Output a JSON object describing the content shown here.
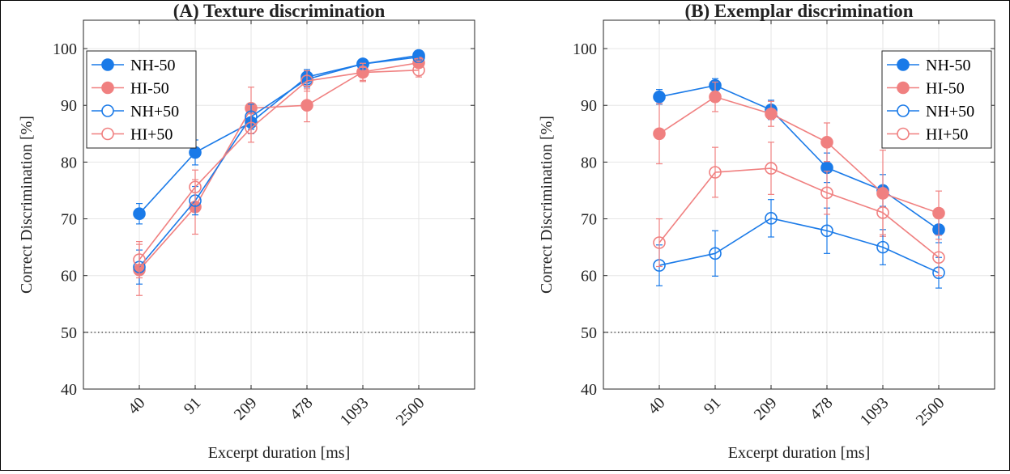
{
  "chart_data": [
    {
      "type": "line",
      "title": "(A) Texture discrimination",
      "xlabel": "Excerpt duration [ms]",
      "ylabel": "Correct Discrimination [%]",
      "categories": [
        "40",
        "91",
        "209",
        "478",
        "1093",
        "2500"
      ],
      "ylim": [
        40,
        105
      ],
      "yticks": [
        40,
        50,
        60,
        70,
        80,
        90,
        100
      ],
      "grid": true,
      "reference_line": 50,
      "legend_position": "top-left",
      "series": [
        {
          "name": "NH-50",
          "color": "#1a7ae8",
          "marker": "filled",
          "values": [
            70.9,
            81.7,
            87.0,
            95.0,
            97.3,
            98.8
          ],
          "err": [
            1.8,
            2.2,
            2.0,
            1.3,
            0.7,
            0.5
          ]
        },
        {
          "name": "HI-50",
          "color": "#f08080",
          "marker": "filled",
          "values": [
            61.0,
            72.1,
            89.5,
            90.0,
            95.9,
            97.5
          ],
          "err": [
            4.5,
            4.8,
            3.7,
            2.9,
            1.5,
            0.9
          ]
        },
        {
          "name": "NH+50",
          "color": "#1a7ae8",
          "marker": "open",
          "values": [
            61.5,
            73.2,
            88.0,
            94.6,
            97.3,
            98.5
          ],
          "err": [
            3.0,
            2.5,
            2.2,
            1.4,
            0.8,
            0.5
          ]
        },
        {
          "name": "HI+50",
          "color": "#f08080",
          "marker": "open",
          "values": [
            62.8,
            75.6,
            86.0,
            94.3,
            95.8,
            96.2
          ],
          "err": [
            3.2,
            3.0,
            2.5,
            1.8,
            1.6,
            1.2
          ]
        }
      ]
    },
    {
      "type": "line",
      "title": "(B) Exemplar discrimination",
      "xlabel": "Excerpt duration [ms]",
      "ylabel": "Correct Discrimination [%]",
      "categories": [
        "40",
        "91",
        "209",
        "478",
        "1093",
        "2500"
      ],
      "ylim": [
        40,
        105
      ],
      "yticks": [
        40,
        50,
        60,
        70,
        80,
        90,
        100
      ],
      "grid": true,
      "reference_line": 50,
      "legend_position": "top-right",
      "series": [
        {
          "name": "NH-50",
          "color": "#1a7ae8",
          "marker": "filled",
          "values": [
            91.5,
            93.5,
            89.2,
            79.0,
            75.0,
            68.1
          ],
          "err": [
            1.3,
            1.2,
            1.7,
            2.6,
            2.8,
            2.3
          ]
        },
        {
          "name": "HI-50",
          "color": "#f08080",
          "marker": "filled",
          "values": [
            85.0,
            91.5,
            88.5,
            83.5,
            74.5,
            71.0
          ],
          "err": [
            5.3,
            2.6,
            2.2,
            3.4,
            7.6,
            3.9
          ]
        },
        {
          "name": "NH+50",
          "color": "#1a7ae8",
          "marker": "open",
          "values": [
            61.8,
            63.9,
            70.1,
            67.9,
            65.0,
            60.5
          ],
          "err": [
            3.6,
            4.0,
            3.3,
            4.0,
            3.1,
            2.7
          ]
        },
        {
          "name": "HI+50",
          "color": "#f08080",
          "marker": "open",
          "values": [
            65.8,
            78.2,
            78.9,
            74.6,
            71.1,
            63.2
          ],
          "err": [
            4.2,
            4.4,
            4.6,
            3.8,
            3.9,
            3.2
          ]
        }
      ]
    }
  ]
}
